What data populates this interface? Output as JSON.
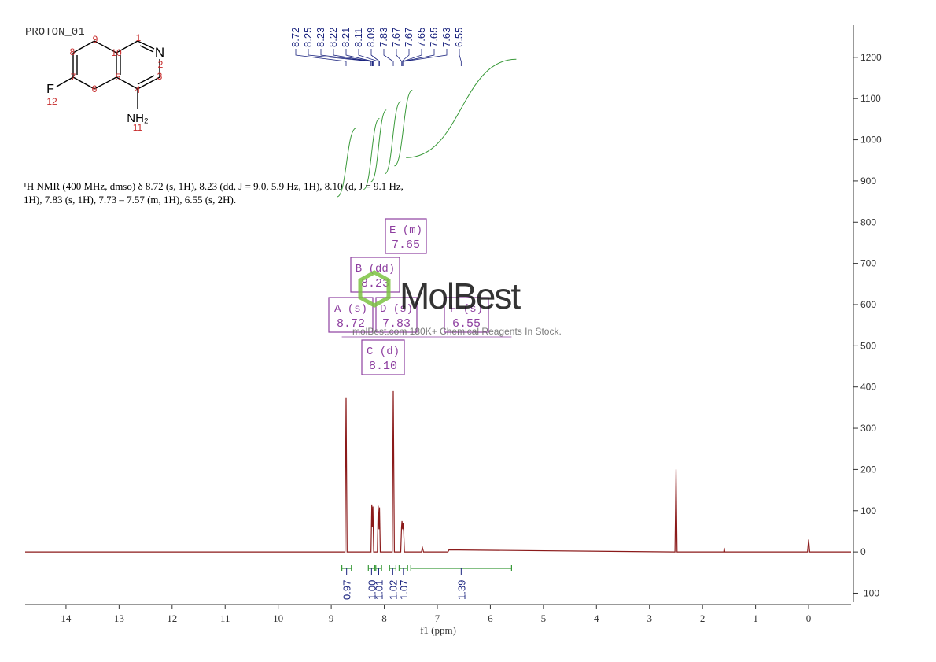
{
  "chart_data": {
    "type": "nmr",
    "title": "PROTON_01",
    "description": [
      "¹H NMR (400 MHz, dmso) δ 8.72 (s, 1H), 8.23 (dd, J = 9.0, 5.9 Hz, 1H), 8.10 (d, J = 9.1 Hz,",
      "1H), 7.83 (s, 1H), 7.73 – 7.57 (m, 1H), 6.55 (s, 2H)."
    ],
    "xlabel": "f1 (ppm)",
    "xlim": [
      14.77,
      -0.8
    ],
    "xticks": [
      14,
      13,
      12,
      11,
      10,
      9,
      8,
      7,
      6,
      5,
      4,
      3,
      2,
      1,
      0
    ],
    "ylim": [
      -122,
      1278
    ],
    "yticks": [
      -100,
      0,
      100,
      200,
      300,
      400,
      500,
      600,
      700,
      800,
      900,
      1000,
      1100,
      1200
    ],
    "color": "#8b1a1a",
    "spectrum": {
      "x": [
        14.77,
        8.74,
        8.72,
        8.7,
        8.25,
        8.235,
        8.225,
        8.215,
        8.2,
        8.13,
        8.115,
        8.1,
        8.09,
        8.075,
        7.85,
        7.83,
        7.81,
        7.69,
        7.675,
        7.665,
        7.655,
        7.645,
        7.635,
        7.62,
        7.3,
        7.28,
        7.26,
        6.8,
        6.78,
        2.52,
        2.5,
        2.48,
        1.6,
        1.59,
        1.58,
        0.02,
        0.0,
        -0.02,
        -0.8
      ],
      "y": [
        0,
        0,
        375,
        0,
        0,
        115,
        60,
        110,
        0,
        0,
        112,
        55,
        108,
        0,
        0,
        390,
        0,
        0,
        60,
        75,
        55,
        70,
        50,
        0,
        0,
        10,
        0,
        0,
        5,
        0,
        200,
        0,
        0,
        10,
        0,
        0,
        30,
        0,
        0
      ]
    },
    "peak_labels": [
      8.72,
      8.25,
      8.23,
      8.22,
      8.21,
      8.11,
      8.09,
      7.83,
      7.67,
      7.67,
      7.65,
      7.65,
      7.63,
      6.55
    ],
    "peak_color": "#1a237e",
    "multiplets": {
      "names": [
        "A (s)",
        "B (dd)",
        "C (d)",
        "D (s)",
        "E (m)",
        "F (s)"
      ],
      "values": [
        8.72,
        8.23,
        8.1,
        7.83,
        7.65,
        6.55
      ],
      "value_labels": [
        "8.72",
        "8.23",
        "8.10",
        "7.83",
        "7.65",
        "6.55"
      ],
      "color": "#8e3fa0"
    },
    "integrals": {
      "ranges": [
        [
          8.8,
          8.62
        ],
        [
          8.3,
          8.18
        ],
        [
          8.16,
          8.05
        ],
        [
          7.9,
          7.78
        ],
        [
          7.72,
          7.56
        ],
        [
          7.5,
          5.6
        ]
      ],
      "values": [
        0.97,
        1.0,
        1.01,
        1.02,
        1.07,
        1.39
      ],
      "value_labels": [
        "0.97",
        "1.00",
        "1.01",
        "1.02",
        "1.07",
        "1.39"
      ],
      "color": "#3a9a3a"
    },
    "structure": {
      "atoms": [
        "N",
        "F",
        "NH₂"
      ],
      "numbers": [
        1,
        2,
        3,
        4,
        5,
        6,
        7,
        8,
        9,
        10,
        11,
        12
      ]
    },
    "watermark": {
      "brand": "MolBest",
      "tagline": "molBest.com 180K+ Chemical Reagents In Stock."
    }
  }
}
